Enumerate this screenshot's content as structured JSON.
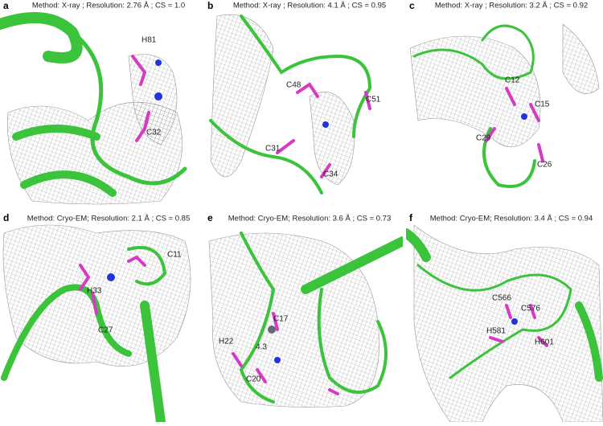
{
  "panels": [
    {
      "letter": "a",
      "caption": "Method: X-ray ; Resolution: 2.76 Å ; CS = 1.0",
      "labels": [
        "H81",
        "C32"
      ]
    },
    {
      "letter": "b",
      "caption": "Method: X-ray ; Resolution: 4.1 Å ; CS = 0.95",
      "labels": [
        "C48",
        "C51",
        "C31",
        "C34"
      ]
    },
    {
      "letter": "c",
      "caption": "Method: X-ray ; Resolution: 3.2 Å ; CS = 0.92",
      "labels": [
        "C12",
        "C15",
        "C29",
        "C26"
      ]
    },
    {
      "letter": "d",
      "caption": "Method: Cryo-EM; Resolution: 2.1 Å ; CS = 0.85",
      "labels": [
        "C11",
        "H33",
        "C27"
      ]
    },
    {
      "letter": "e",
      "caption": "Method: Cryo-EM; Resolution: 3.6 Å ; CS = 0.73",
      "labels": [
        "C17",
        "H22",
        "4.3",
        "C20"
      ]
    },
    {
      "letter": "f",
      "caption": "Method: Cryo-EM; Resolution: 3.4 Å ; CS = 0.94",
      "labels": [
        "C566",
        "C576",
        "H581",
        "H601"
      ]
    }
  ]
}
